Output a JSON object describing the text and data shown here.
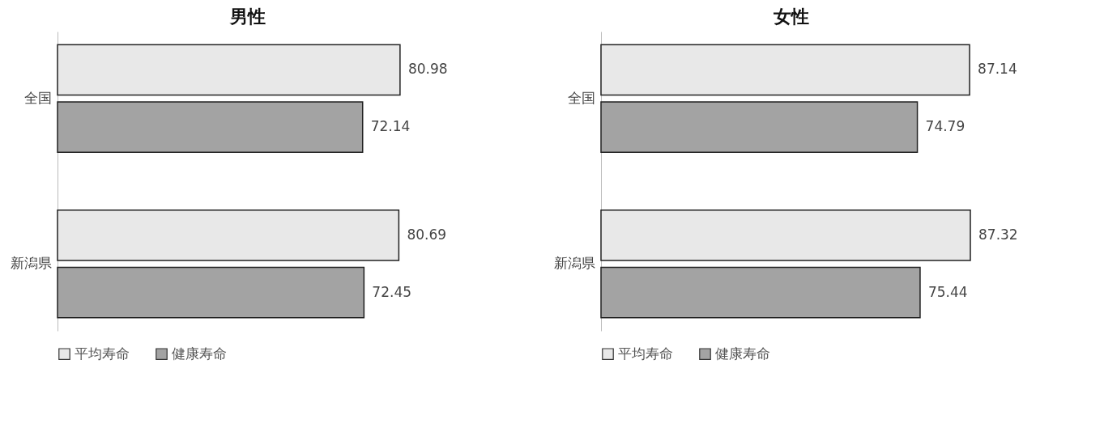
{
  "chart_data": [
    {
      "type": "bar",
      "orientation": "horizontal",
      "title": "男性",
      "categories": [
        "全国",
        "新潟県"
      ],
      "series": [
        {
          "name": "平均寿命",
          "color": "#e8e8e8",
          "values": [
            80.98,
            80.69
          ]
        },
        {
          "name": "健康寿命",
          "color": "#a3a3a3",
          "values": [
            72.14,
            72.45
          ]
        }
      ],
      "data_labels": true,
      "legend": "bottom"
    },
    {
      "type": "bar",
      "orientation": "horizontal",
      "title": "女性",
      "categories": [
        "全国",
        "新潟県"
      ],
      "series": [
        {
          "name": "平均寿命",
          "color": "#e8e8e8",
          "values": [
            87.14,
            87.32
          ]
        },
        {
          "name": "健康寿命",
          "color": "#a3a3a3",
          "values": [
            74.79,
            75.44
          ]
        }
      ],
      "data_labels": true,
      "legend": "bottom"
    }
  ]
}
